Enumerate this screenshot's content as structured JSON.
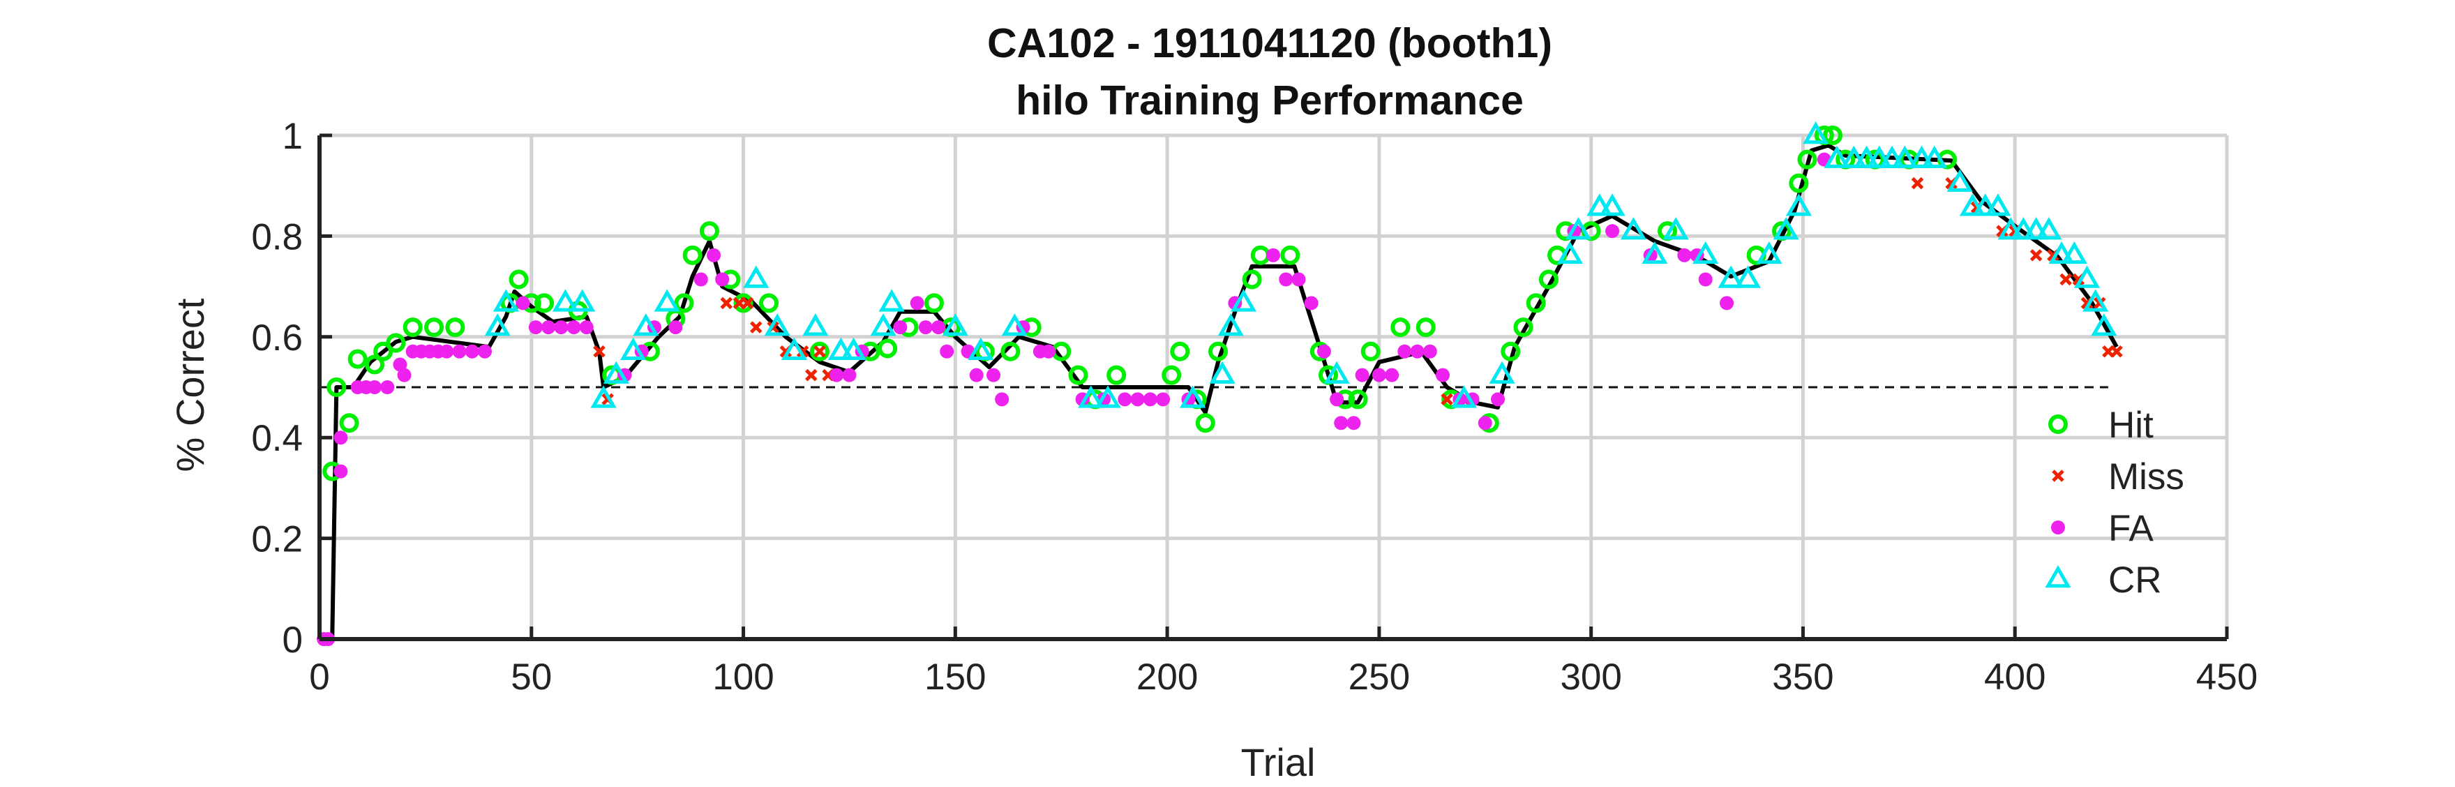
{
  "chart_data": {
    "type": "scatter",
    "title": "CA102 - 1911041120 (booth1)",
    "subtitle": "hilo Training Performance",
    "xlabel": "Trial",
    "ylabel": "% Correct",
    "xlim": [
      0,
      450
    ],
    "ylim": [
      0,
      1
    ],
    "xticks": [
      "0",
      "50",
      "100",
      "150",
      "200",
      "250",
      "300",
      "350",
      "400",
      "450"
    ],
    "yticks": [
      "0",
      "0.2",
      "0.4",
      "0.6",
      "0.8",
      "1"
    ],
    "grid": true,
    "legend_position": "right",
    "chance_level": 0.5,
    "chance_line_x": [
      0,
      422
    ],
    "series": [
      {
        "name": "Hit",
        "marker": "circle-open",
        "color": "#00ee00",
        "points": [
          [
            3,
            0.333
          ],
          [
            4,
            0.5
          ],
          [
            7,
            0.429
          ],
          [
            9,
            0.556
          ],
          [
            13,
            0.545
          ],
          [
            15,
            0.571
          ],
          [
            18,
            0.588
          ],
          [
            22,
            0.619
          ],
          [
            27,
            0.619
          ],
          [
            32,
            0.619
          ],
          [
            45,
            0.667
          ],
          [
            47,
            0.714
          ],
          [
            50,
            0.667
          ],
          [
            53,
            0.667
          ],
          [
            61,
            0.652
          ],
          [
            69,
            0.524
          ],
          [
            78,
            0.571
          ],
          [
            84,
            0.636
          ],
          [
            86,
            0.667
          ],
          [
            88,
            0.762
          ],
          [
            92,
            0.81
          ],
          [
            97,
            0.714
          ],
          [
            100,
            0.667
          ],
          [
            106,
            0.667
          ],
          [
            118,
            0.571
          ],
          [
            130,
            0.571
          ],
          [
            134,
            0.577
          ],
          [
            139,
            0.619
          ],
          [
            145,
            0.667
          ],
          [
            149,
            0.619
          ],
          [
            157,
            0.571
          ],
          [
            163,
            0.571
          ],
          [
            168,
            0.619
          ],
          [
            175,
            0.571
          ],
          [
            179,
            0.524
          ],
          [
            183,
            0.476
          ],
          [
            188,
            0.524
          ],
          [
            201,
            0.524
          ],
          [
            203,
            0.571
          ],
          [
            207,
            0.476
          ],
          [
            209,
            0.429
          ],
          [
            212,
            0.571
          ],
          [
            220,
            0.714
          ],
          [
            222,
            0.762
          ],
          [
            229,
            0.762
          ],
          [
            236,
            0.571
          ],
          [
            238,
            0.524
          ],
          [
            242,
            0.476
          ],
          [
            245,
            0.476
          ],
          [
            248,
            0.571
          ],
          [
            255,
            0.619
          ],
          [
            261,
            0.619
          ],
          [
            267,
            0.476
          ],
          [
            276,
            0.429
          ],
          [
            281,
            0.571
          ],
          [
            284,
            0.619
          ],
          [
            287,
            0.667
          ],
          [
            290,
            0.714
          ],
          [
            292,
            0.762
          ],
          [
            294,
            0.81
          ],
          [
            300,
            0.81
          ],
          [
            318,
            0.81
          ],
          [
            339,
            0.762
          ],
          [
            345,
            0.81
          ],
          [
            349,
            0.905
          ],
          [
            351,
            0.952
          ],
          [
            355,
            1.0
          ],
          [
            357,
            1.0
          ],
          [
            360,
            0.952
          ],
          [
            367,
            0.952
          ],
          [
            375,
            0.952
          ],
          [
            384,
            0.952
          ]
        ]
      },
      {
        "name": "Miss",
        "marker": "x",
        "color": "#ee2200",
        "points": [
          [
            66,
            0.571
          ],
          [
            68,
            0.476
          ],
          [
            96,
            0.667
          ],
          [
            99,
            0.667
          ],
          [
            101,
            0.667
          ],
          [
            103,
            0.619
          ],
          [
            107,
            0.619
          ],
          [
            110,
            0.571
          ],
          [
            114,
            0.571
          ],
          [
            116,
            0.524
          ],
          [
            118,
            0.571
          ],
          [
            120,
            0.524
          ],
          [
            266,
            0.476
          ],
          [
            270,
            0.476
          ],
          [
            377,
            0.905
          ],
          [
            385,
            0.905
          ],
          [
            391,
            0.857
          ],
          [
            397,
            0.81
          ],
          [
            400,
            0.81
          ],
          [
            405,
            0.762
          ],
          [
            409,
            0.762
          ],
          [
            412,
            0.714
          ],
          [
            415,
            0.714
          ],
          [
            417,
            0.667
          ],
          [
            420,
            0.667
          ],
          [
            422,
            0.571
          ],
          [
            424,
            0.571
          ]
        ]
      },
      {
        "name": "FA",
        "marker": "dot",
        "color": "#ee22ee",
        "points": [
          [
            1,
            0.0
          ],
          [
            2,
            0.0
          ],
          [
            5,
            0.333
          ],
          [
            5,
            0.4
          ],
          [
            9,
            0.5
          ],
          [
            11,
            0.5
          ],
          [
            13,
            0.5
          ],
          [
            16,
            0.5
          ],
          [
            19,
            0.545
          ],
          [
            20,
            0.524
          ],
          [
            22,
            0.571
          ],
          [
            24,
            0.571
          ],
          [
            26,
            0.571
          ],
          [
            28,
            0.571
          ],
          [
            30,
            0.571
          ],
          [
            33,
            0.571
          ],
          [
            36,
            0.571
          ],
          [
            39,
            0.571
          ],
          [
            48,
            0.667
          ],
          [
            51,
            0.619
          ],
          [
            54,
            0.619
          ],
          [
            57,
            0.619
          ],
          [
            60,
            0.619
          ],
          [
            63,
            0.619
          ],
          [
            72,
            0.524
          ],
          [
            76,
            0.571
          ],
          [
            79,
            0.619
          ],
          [
            84,
            0.619
          ],
          [
            90,
            0.714
          ],
          [
            93,
            0.762
          ],
          [
            95,
            0.714
          ],
          [
            122,
            0.524
          ],
          [
            125,
            0.524
          ],
          [
            128,
            0.571
          ],
          [
            137,
            0.619
          ],
          [
            141,
            0.667
          ],
          [
            143,
            0.619
          ],
          [
            146,
            0.619
          ],
          [
            148,
            0.571
          ],
          [
            153,
            0.571
          ],
          [
            155,
            0.524
          ],
          [
            159,
            0.524
          ],
          [
            161,
            0.476
          ],
          [
            166,
            0.619
          ],
          [
            170,
            0.571
          ],
          [
            172,
            0.571
          ],
          [
            180,
            0.476
          ],
          [
            185,
            0.476
          ],
          [
            190,
            0.476
          ],
          [
            193,
            0.476
          ],
          [
            196,
            0.476
          ],
          [
            199,
            0.476
          ],
          [
            205,
            0.476
          ],
          [
            216,
            0.667
          ],
          [
            225,
            0.762
          ],
          [
            228,
            0.714
          ],
          [
            231,
            0.714
          ],
          [
            234,
            0.667
          ],
          [
            237,
            0.571
          ],
          [
            240,
            0.476
          ],
          [
            241,
            0.429
          ],
          [
            244,
            0.429
          ],
          [
            246,
            0.524
          ],
          [
            250,
            0.524
          ],
          [
            253,
            0.524
          ],
          [
            256,
            0.571
          ],
          [
            259,
            0.571
          ],
          [
            262,
            0.571
          ],
          [
            265,
            0.524
          ],
          [
            269,
            0.476
          ],
          [
            272,
            0.476
          ],
          [
            275,
            0.429
          ],
          [
            278,
            0.476
          ],
          [
            296,
            0.81
          ],
          [
            305,
            0.81
          ],
          [
            314,
            0.762
          ],
          [
            322,
            0.762
          ],
          [
            325,
            0.762
          ],
          [
            327,
            0.714
          ],
          [
            332,
            0.667
          ],
          [
            355,
            0.952
          ]
        ]
      },
      {
        "name": "CR",
        "marker": "triangle-open",
        "color": "#00e8f0",
        "points": [
          [
            42,
            0.619
          ],
          [
            44,
            0.667
          ],
          [
            58,
            0.667
          ],
          [
            62,
            0.667
          ],
          [
            67,
            0.476
          ],
          [
            70,
            0.524
          ],
          [
            74,
            0.571
          ],
          [
            77,
            0.619
          ],
          [
            82,
            0.667
          ],
          [
            103,
            0.714
          ],
          [
            108,
            0.619
          ],
          [
            112,
            0.571
          ],
          [
            117,
            0.619
          ],
          [
            123,
            0.571
          ],
          [
            126,
            0.571
          ],
          [
            133,
            0.619
          ],
          [
            135,
            0.667
          ],
          [
            150,
            0.619
          ],
          [
            156,
            0.571
          ],
          [
            164,
            0.619
          ],
          [
            182,
            0.476
          ],
          [
            186,
            0.476
          ],
          [
            206,
            0.476
          ],
          [
            213,
            0.524
          ],
          [
            215,
            0.619
          ],
          [
            218,
            0.667
          ],
          [
            240,
            0.524
          ],
          [
            270,
            0.476
          ],
          [
            279,
            0.524
          ],
          [
            295,
            0.762
          ],
          [
            297,
            0.81
          ],
          [
            302,
            0.857
          ],
          [
            305,
            0.857
          ],
          [
            310,
            0.81
          ],
          [
            315,
            0.762
          ],
          [
            320,
            0.81
          ],
          [
            327,
            0.762
          ],
          [
            333,
            0.714
          ],
          [
            337,
            0.714
          ],
          [
            342,
            0.762
          ],
          [
            346,
            0.81
          ],
          [
            349,
            0.857
          ],
          [
            353,
            1.0
          ],
          [
            358,
            0.952
          ],
          [
            362,
            0.952
          ],
          [
            365,
            0.952
          ],
          [
            368,
            0.952
          ],
          [
            371,
            0.952
          ],
          [
            374,
            0.952
          ],
          [
            378,
            0.952
          ],
          [
            381,
            0.952
          ],
          [
            387,
            0.905
          ],
          [
            390,
            0.857
          ],
          [
            393,
            0.857
          ],
          [
            396,
            0.857
          ],
          [
            399,
            0.81
          ],
          [
            402,
            0.81
          ],
          [
            405,
            0.81
          ],
          [
            408,
            0.81
          ],
          [
            411,
            0.762
          ],
          [
            414,
            0.762
          ],
          [
            417,
            0.714
          ],
          [
            419,
            0.667
          ],
          [
            421,
            0.619
          ]
        ]
      }
    ],
    "performance_line": [
      [
        0,
        0
      ],
      [
        3,
        0
      ],
      [
        4,
        0.5
      ],
      [
        8,
        0.5
      ],
      [
        12,
        0.55
      ],
      [
        18,
        0.59
      ],
      [
        22,
        0.6
      ],
      [
        40,
        0.58
      ],
      [
        44,
        0.64
      ],
      [
        46,
        0.69
      ],
      [
        50,
        0.66
      ],
      [
        55,
        0.63
      ],
      [
        63,
        0.64
      ],
      [
        66,
        0.57
      ],
      [
        67,
        0.5
      ],
      [
        72,
        0.52
      ],
      [
        80,
        0.6
      ],
      [
        85,
        0.64
      ],
      [
        88,
        0.72
      ],
      [
        92,
        0.79
      ],
      [
        95,
        0.7
      ],
      [
        102,
        0.67
      ],
      [
        110,
        0.6
      ],
      [
        118,
        0.55
      ],
      [
        125,
        0.53
      ],
      [
        133,
        0.59
      ],
      [
        137,
        0.65
      ],
      [
        145,
        0.65
      ],
      [
        150,
        0.6
      ],
      [
        158,
        0.54
      ],
      [
        165,
        0.6
      ],
      [
        173,
        0.58
      ],
      [
        180,
        0.5
      ],
      [
        190,
        0.5
      ],
      [
        200,
        0.5
      ],
      [
        205,
        0.5
      ],
      [
        209,
        0.45
      ],
      [
        212,
        0.55
      ],
      [
        216,
        0.65
      ],
      [
        220,
        0.74
      ],
      [
        230,
        0.74
      ],
      [
        236,
        0.58
      ],
      [
        240,
        0.47
      ],
      [
        245,
        0.47
      ],
      [
        250,
        0.55
      ],
      [
        260,
        0.57
      ],
      [
        266,
        0.5
      ],
      [
        272,
        0.47
      ],
      [
        278,
        0.46
      ],
      [
        282,
        0.58
      ],
      [
        290,
        0.7
      ],
      [
        297,
        0.81
      ],
      [
        305,
        0.84
      ],
      [
        315,
        0.79
      ],
      [
        325,
        0.76
      ],
      [
        333,
        0.72
      ],
      [
        342,
        0.75
      ],
      [
        348,
        0.85
      ],
      [
        352,
        0.97
      ],
      [
        356,
        0.98
      ],
      [
        360,
        0.96
      ],
      [
        385,
        0.95
      ],
      [
        392,
        0.87
      ],
      [
        400,
        0.82
      ],
      [
        410,
        0.76
      ],
      [
        418,
        0.67
      ],
      [
        424,
        0.58
      ]
    ]
  }
}
